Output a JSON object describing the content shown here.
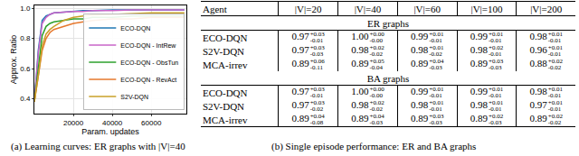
{
  "chart_data": {
    "type": "line",
    "x_label": "Param. updates",
    "y_label": "Approx. Ratio",
    "x": [
      0,
      2000,
      4000,
      6000,
      8000,
      10000,
      15000,
      20000,
      25000,
      30000,
      40000,
      50000,
      60000,
      70000,
      77000
    ],
    "series": [
      {
        "name": "ECO-DQN",
        "color": "#1f77b4",
        "values": [
          0.38,
          0.72,
          0.92,
          0.95,
          0.96,
          0.97,
          0.975,
          0.98,
          0.985,
          0.985,
          0.99,
          0.99,
          0.99,
          0.99,
          0.99
        ]
      },
      {
        "name": "ECO-DQN - IntRew",
        "color": "#c864c8",
        "values": [
          0.38,
          0.7,
          0.9,
          0.94,
          0.96,
          0.97,
          0.975,
          0.98,
          0.98,
          0.985,
          0.985,
          0.99,
          0.99,
          0.99,
          0.99
        ]
      },
      {
        "name": "ECO-DQN - ObsTun",
        "color": "#2ca02c",
        "values": [
          0.38,
          0.62,
          0.82,
          0.88,
          0.9,
          0.91,
          0.92,
          0.93,
          0.93,
          0.94,
          0.94,
          0.95,
          0.95,
          0.95,
          0.95
        ]
      },
      {
        "name": "ECO-DQN - RevAct",
        "color": "#e6782d",
        "values": [
          0.38,
          0.55,
          0.72,
          0.8,
          0.84,
          0.86,
          0.88,
          0.9,
          0.91,
          0.92,
          0.93,
          0.93,
          0.94,
          0.94,
          0.94
        ]
      },
      {
        "name": "S2V-DQN",
        "color": "#c8a028",
        "values": [
          0.38,
          0.55,
          0.75,
          0.83,
          0.86,
          0.88,
          0.92,
          0.94,
          0.95,
          0.955,
          0.96,
          0.965,
          0.97,
          0.97,
          0.97
        ]
      }
    ],
    "xlim": [
      0,
      78000
    ],
    "xticks": [
      20000,
      40000,
      60000
    ],
    "ylim": [
      0.3,
      1.02
    ],
    "yticks": [
      {
        "value": 0.4,
        "label": "0.4"
      },
      {
        "value": 0.6,
        "label": "0.6"
      },
      {
        "value": 0.8,
        "label": "0.8"
      },
      {
        "value": 1.0,
        "label": "1.0"
      }
    ],
    "grid": true,
    "legend": "lower right"
  },
  "captions": {
    "a": "(a) Learning curves: ER graphs with |V|=40",
    "b": "(b) Single episode performance: ER and BA graphs"
  },
  "table": {
    "header": [
      "Agent",
      "|V|=20",
      "|V|=40",
      "|V|=60",
      "|V|=100",
      "|V|=200"
    ],
    "sections": [
      {
        "title": "ER graphs",
        "rows": [
          {
            "agent": "ECO-DQN",
            "cells": [
              [
                "0.97",
                "+0.03",
                "-0.01"
              ],
              [
                "1.00",
                "+0.00",
                "-0.00"
              ],
              [
                "0.99",
                "+0.01",
                "-0.01"
              ],
              [
                "0.99",
                "+0.01",
                "-0.01"
              ],
              [
                "0.98",
                "+0.01",
                "-0.01"
              ]
            ]
          },
          {
            "agent": "S2V-DQN",
            "cells": [
              [
                "0.97",
                "+0.03",
                "-0.03"
              ],
              [
                "0.98",
                "+0.02",
                "-0.02"
              ],
              [
                "0.98",
                "+0.01",
                "-0.02"
              ],
              [
                "0.98",
                "+0.02",
                "-0.01"
              ],
              [
                "0.96",
                "+0.01",
                "-0.01"
              ]
            ]
          },
          {
            "agent": "MCA-irrev",
            "cells": [
              [
                "0.89",
                "+0.06",
                "-0.11"
              ],
              [
                "0.89",
                "+0.05",
                "-0.04"
              ],
              [
                "0.89",
                "+0.04",
                "-0.03"
              ],
              [
                "0.89",
                "+0.03",
                "-0.03"
              ],
              [
                "0.88",
                "+0.02",
                "-0.02"
              ]
            ]
          }
        ]
      },
      {
        "title": "BA graphs",
        "rows": [
          {
            "agent": "ECO-DQN",
            "cells": [
              [
                "0.97",
                "+0.03",
                "-0.01"
              ],
              [
                "1.00",
                "+0.00",
                "-0.00"
              ],
              [
                "0.99",
                "+0.01",
                "-0.01"
              ],
              [
                "0.99",
                "+0.01",
                "-0.01"
              ],
              [
                "0.98",
                "+0.01",
                "-0.01"
              ]
            ]
          },
          {
            "agent": "S2V-DQN",
            "cells": [
              [
                "0.97",
                "+0.03",
                "-0.02"
              ],
              [
                "0.98",
                "+0.02",
                "-0.02"
              ],
              [
                "0.98",
                "+0.01",
                "-0.01"
              ],
              [
                "0.98",
                "+0.01",
                "-0.01"
              ],
              [
                "0.97",
                "+0.01",
                "-0.01"
              ]
            ]
          },
          {
            "agent": "MCA-irrev",
            "cells": [
              [
                "0.89",
                "+0.04",
                "-0.08"
              ],
              [
                "0.89",
                "+0.04",
                "-0.03"
              ],
              [
                "0.89",
                "+0.03",
                "-0.03"
              ],
              [
                "0.89",
                "+0.02",
                "-0.03"
              ],
              [
                "0.89",
                "+0.02",
                "-0.02"
              ]
            ]
          }
        ]
      }
    ]
  }
}
